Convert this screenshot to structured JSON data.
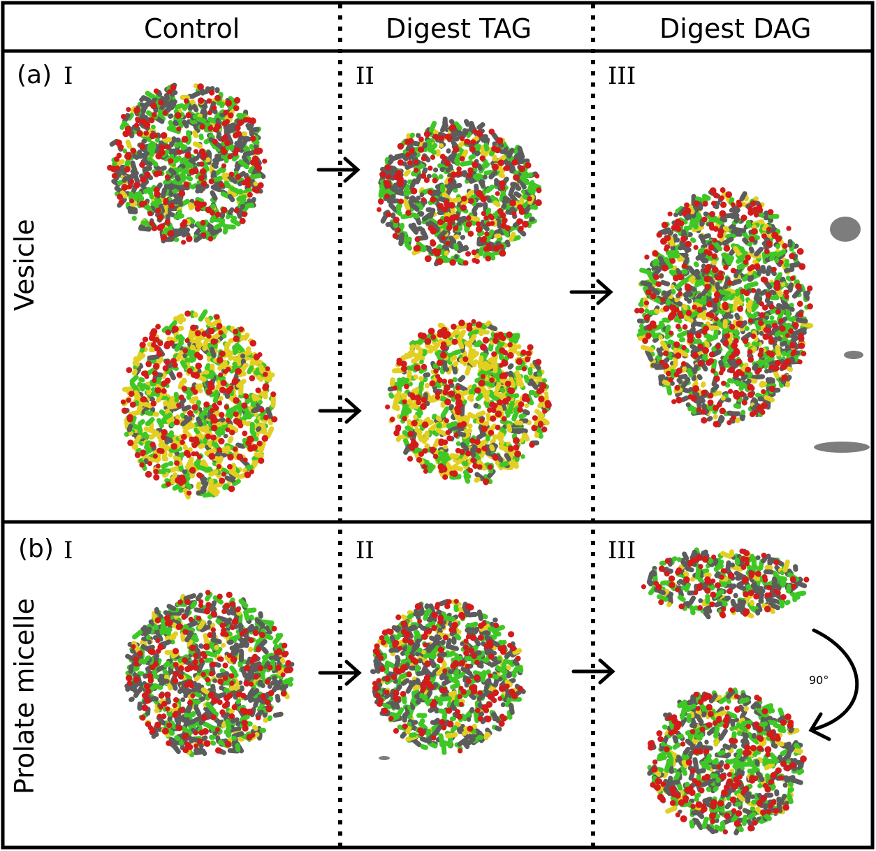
{
  "columns": {
    "control": "Control",
    "digest_tag": "Digest TAG",
    "digest_dag": "Digest DAG"
  },
  "rows": {
    "a": {
      "tag": "(a)",
      "label": "Vesicle",
      "panels": {
        "i": "I",
        "ii": "II",
        "iii": "III"
      }
    },
    "b": {
      "tag": "(b)",
      "label": "Prolate micelle",
      "panels": {
        "i": "I",
        "ii": "II",
        "iii": "III"
      }
    }
  },
  "rotation_label": "90°",
  "colors": {
    "grey_bead": "#5c5c5c",
    "green_bead": "#3fc726",
    "yellow_bead": "#e2cf22",
    "red_bead": "#d41b1b",
    "frame": "#000000"
  }
}
